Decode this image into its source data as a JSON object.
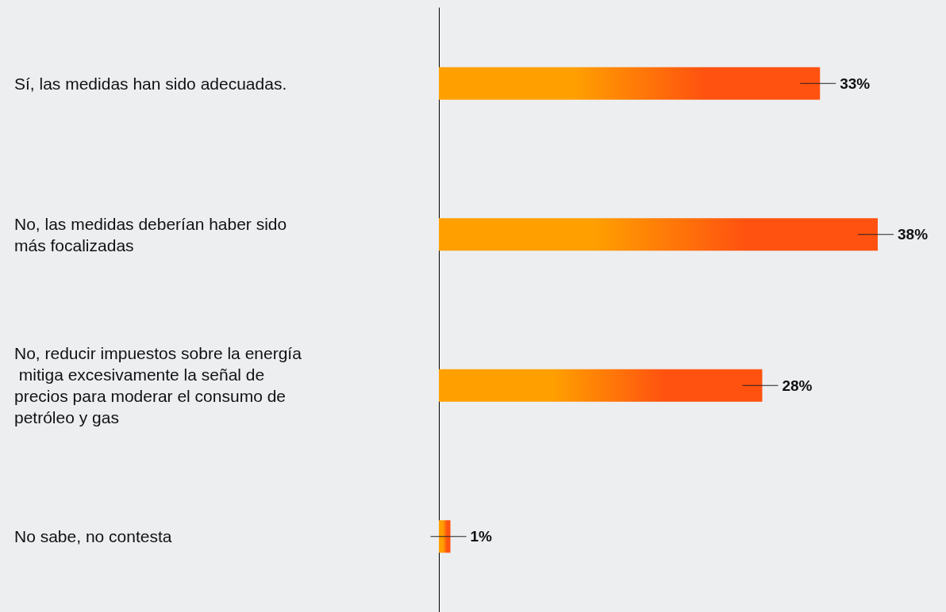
{
  "chart_data": {
    "type": "bar",
    "orientation": "horizontal",
    "categories": [
      "Sí, las medidas han sido adecuadas.",
      "No, las medidas deberían haber sido más focalizadas",
      "No, reducir impuestos sobre la energía mitiga excesivamente la señal de precios para moderar el consumo de petróleo y gas",
      "No sabe, no contesta"
    ],
    "values": [
      33,
      38,
      28,
      1
    ],
    "value_labels": [
      "33%",
      "38%",
      "28%",
      "1%"
    ],
    "color": "#ffa000"
  }
}
